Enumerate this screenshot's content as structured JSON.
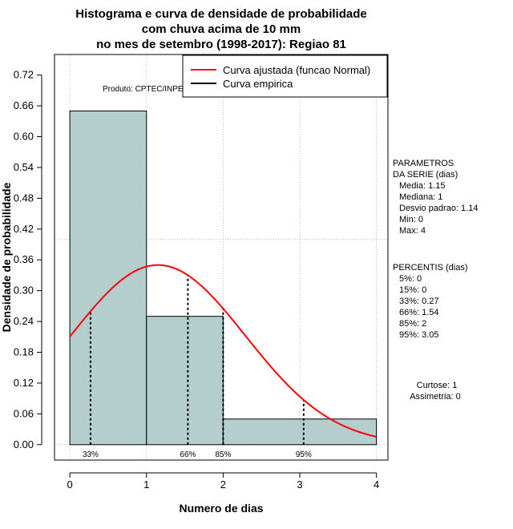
{
  "chart_data": {
    "type": "bar",
    "title_lines": [
      "Histograma e curva de densidade de probabilidade",
      "com chuva acima de 10 mm",
      "no mes de setembro (1998-2017): Regiao 81"
    ],
    "xlabel": "Numero de dias",
    "ylabel": "Densidade de probabilidade",
    "xlim": [
      -0.2,
      4.15
    ],
    "ylim": [
      -0.03,
      0.76
    ],
    "x_ticks": [
      "0",
      "1",
      "2",
      "3",
      "4"
    ],
    "y_ticks": [
      "0.00",
      "0.06",
      "0.12",
      "0.18",
      "0.24",
      "0.30",
      "0.36",
      "0.42",
      "0.48",
      "0.54",
      "0.60",
      "0.66",
      "0.72"
    ],
    "grid": true,
    "bins": [
      {
        "x0": 0,
        "x1": 1,
        "density": 0.65
      },
      {
        "x0": 1,
        "x1": 2,
        "density": 0.25
      },
      {
        "x0": 2,
        "x1": 4,
        "density": 0.05
      }
    ],
    "normal_fit": {
      "mean": 1.15,
      "sd": 1.14
    },
    "percentile_markers": [
      {
        "label": "33%",
        "x": 0.27
      },
      {
        "label": "66%",
        "x": 1.54
      },
      {
        "label": "85%",
        "x": 2.0
      },
      {
        "label": "95%",
        "x": 3.05
      }
    ],
    "legend": {
      "position": "top-right",
      "entries": [
        {
          "label": "Curva ajustada (funcao Normal)",
          "color": "#ff0000"
        },
        {
          "label": "Curva empirica",
          "color": "#000000"
        }
      ]
    },
    "source_note": "Produto: CPTEC/INPE",
    "colors": {
      "bar_fill": "#b4cdcd",
      "curve": "#ff0000",
      "grid": "#bebebe"
    },
    "side_panel": {
      "params_title": [
        "PARAMETROS",
        "DA SERIE (dias)"
      ],
      "params": [
        "Media: 1.15",
        "Mediana: 1",
        "Desvio padrao: 1.14",
        "Min: 0",
        "Max: 4"
      ],
      "percentis_title": "PERCENTIS (dias)",
      "percentis": [
        "5%: 0",
        "15%: 0",
        "33%: 0.27",
        "66%: 1.54",
        "85%: 2",
        "95%: 3.05"
      ],
      "curtose": "Curtose: 1",
      "assimetria": "Assimetria: 0"
    }
  }
}
